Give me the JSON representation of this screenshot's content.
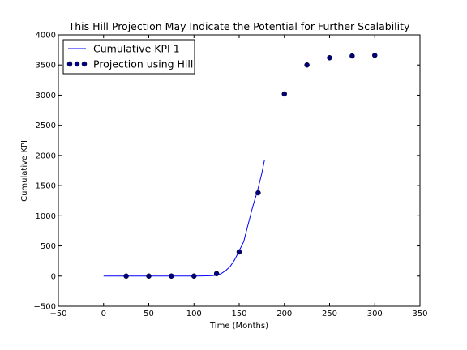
{
  "chart_data": {
    "type": "line",
    "title": "This Hill Projection May Indicate the Potential for Further Scalability",
    "xlabel": "Time (Months)",
    "ylabel": "Cumulative KPI",
    "xlim": [
      -50,
      350
    ],
    "ylim": [
      -500,
      4000
    ],
    "xticks": [
      -50,
      0,
      50,
      100,
      150,
      200,
      250,
      300,
      350
    ],
    "yticks": [
      -500,
      0,
      500,
      1000,
      1500,
      2000,
      2500,
      3000,
      3500,
      4000
    ],
    "grid": false,
    "legend_position": "top-left",
    "series": [
      {
        "name": "Cumulative KPI 1",
        "kind": "line",
        "color": "#0000ff",
        "x": [
          0,
          20,
          40,
          60,
          80,
          100,
          110,
          120,
          125,
          130,
          135,
          140,
          145,
          150,
          155,
          160,
          165,
          170,
          175,
          178
        ],
        "y": [
          0,
          0,
          0,
          0,
          0,
          0,
          2,
          8,
          15,
          40,
          90,
          160,
          270,
          420,
          570,
          860,
          1150,
          1400,
          1700,
          1920
        ]
      },
      {
        "name": "Projection using Hill",
        "kind": "scatter",
        "color": "#00007f",
        "x": [
          25,
          50,
          75,
          100,
          125,
          150,
          171,
          200,
          225,
          250,
          275,
          300
        ],
        "y": [
          0,
          0,
          0,
          0,
          40,
          400,
          1380,
          3020,
          3500,
          3620,
          3650,
          3660
        ]
      }
    ]
  }
}
